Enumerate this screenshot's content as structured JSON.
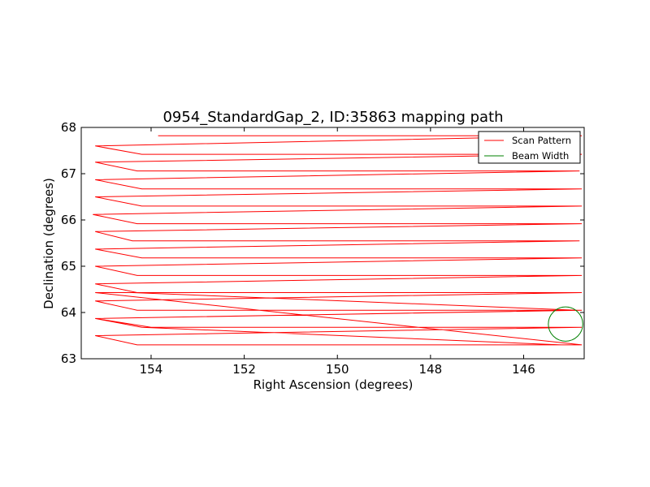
{
  "chart_data": {
    "type": "line",
    "title": "0954_StandardGap_2, ID:35863 mapping path",
    "xlabel": "Right Ascension (degrees)",
    "ylabel": "Declination (degrees)",
    "xlim": [
      155.5,
      144.7
    ],
    "ylim": [
      63,
      68
    ],
    "x_axis_inverted": true,
    "xticks": [
      154,
      152,
      150,
      148,
      146
    ],
    "xtick_labels": [
      "154",
      "152",
      "150",
      "148",
      "146"
    ],
    "yticks": [
      63,
      64,
      65,
      66,
      67,
      68
    ],
    "ytick_labels": [
      "63",
      "64",
      "65",
      "66",
      "67",
      "68"
    ],
    "grid": false,
    "legend": {
      "position": "top-right",
      "entries": [
        "Scan Pattern",
        "Beam Width"
      ]
    },
    "series": [
      {
        "name": "Scan Pattern",
        "color": "#ff0000",
        "x": [
          153.85,
          144.75,
          155.2,
          154.2,
          144.75,
          155.2,
          154.3,
          144.8,
          155.2,
          154.2,
          145.5,
          144.75,
          155.2,
          154.2,
          145.4,
          144.75,
          155.25,
          154.3,
          145.35,
          144.75,
          155.2,
          154.4,
          145.2,
          144.8,
          155.2,
          154.2,
          145.3,
          144.75,
          155.2,
          154.3,
          145.3,
          144.75,
          155.2,
          154.3,
          145.7,
          144.75,
          155.2,
          154.3,
          145.2,
          144.75,
          155.2,
          154.0,
          145.5,
          144.75,
          155.2,
          154.3,
          144.75,
          155.2,
          154.4,
          144.85,
          155.2,
          154.2,
          145.2
        ],
        "y": [
          67.82,
          67.82,
          67.6,
          67.42,
          67.42,
          67.25,
          67.06,
          67.06,
          66.87,
          66.67,
          66.67,
          66.67,
          66.5,
          66.3,
          66.3,
          66.3,
          66.12,
          65.92,
          65.92,
          65.92,
          65.75,
          65.55,
          65.55,
          65.55,
          65.37,
          65.18,
          65.18,
          65.18,
          65.0,
          64.8,
          64.8,
          64.8,
          64.62,
          64.43,
          64.43,
          64.43,
          64.25,
          64.05,
          64.05,
          64.05,
          63.87,
          63.68,
          63.68,
          63.68,
          63.5,
          63.3,
          63.3,
          64.43,
          64.43,
          64.05,
          63.87,
          63.68,
          63.3
        ]
      }
    ],
    "beam_width": {
      "name": "Beam Width",
      "color": "#008000",
      "center": [
        145.1,
        63.75
      ],
      "radius_ra": 0.37,
      "radius_dec": 0.37
    }
  }
}
